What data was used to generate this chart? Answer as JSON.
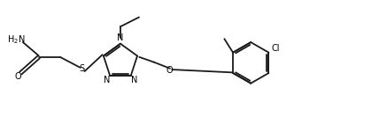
{
  "figsize": [
    4.37,
    1.33
  ],
  "dpi": 100,
  "bg_color": "#ffffff",
  "line_color": "#1a1a1a",
  "line_width": 1.3,
  "font_size": 7.0,
  "font_color": "#000000",
  "xlim": [
    0,
    13.5
  ],
  "ylim": [
    0,
    4.0
  ]
}
